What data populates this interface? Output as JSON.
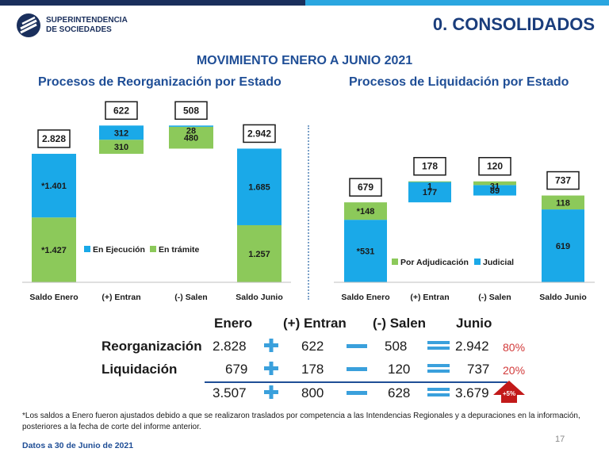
{
  "header": {
    "logo_line1": "SUPERINTENDENCIA",
    "logo_line2": "DE SOCIEDADES",
    "section_title": "0. CONSOLIDADOS",
    "main_title": "MOVIMIENTO ENERO A JUNIO 2021"
  },
  "colors": {
    "ejecucion": "#1aa9e8",
    "tramite": "#8cc95a",
    "dark_blue": "#1a2f5c",
    "title_blue": "#1f4e96"
  },
  "chart_data": [
    {
      "type": "bar",
      "title": "Procesos de Reorganización por Estado",
      "categories": [
        "Saldo Enero",
        "(+) Entran",
        "(-) Salen",
        "Saldo Junio"
      ],
      "totals": [
        "2.828",
        "622",
        "508",
        "2.942"
      ],
      "legend": [
        "En Ejecución",
        "En trámite"
      ],
      "series": [
        {
          "name": "En Ejecución",
          "values": [
            1401,
            312,
            28,
            1685
          ],
          "labels": [
            "*1.401",
            "312",
            "28",
            "1.685"
          ]
        },
        {
          "name": "En trámite",
          "values": [
            1427,
            310,
            480,
            1257
          ],
          "labels": [
            "*1.427",
            "310",
            "480",
            "1.257"
          ]
        }
      ]
    },
    {
      "type": "bar",
      "title": "Procesos de Liquidación por Estado",
      "categories": [
        "Saldo Enero",
        "(+) Entran",
        "(-) Salen",
        "Saldo Junio"
      ],
      "totals": [
        "679",
        "178",
        "120",
        "737"
      ],
      "legend": [
        "Por Adjudicación",
        "Judicial"
      ],
      "series": [
        {
          "name": "Judicial",
          "values": [
            531,
            177,
            89,
            619
          ],
          "labels": [
            "*531",
            "177",
            "89",
            "619"
          ]
        },
        {
          "name": "Por Adjudicación",
          "values": [
            148,
            1,
            31,
            118
          ],
          "labels": [
            "*148",
            "1",
            "31",
            "118"
          ]
        }
      ]
    }
  ],
  "summary_table": {
    "headers": [
      "Enero",
      "(+) Entran",
      "(-) Salen",
      "Junio"
    ],
    "rows": [
      {
        "label": "Reorganización",
        "enero": "2.828",
        "entran": "622",
        "salen": "508",
        "junio": "2.942",
        "pct": "80%"
      },
      {
        "label": "Liquidación",
        "enero": "679",
        "entran": "178",
        "salen": "120",
        "junio": "737",
        "pct": "20%"
      }
    ],
    "total": {
      "enero": "3.507",
      "entran": "800",
      "salen": "628",
      "junio": "3.679",
      "change": "+5%"
    }
  },
  "footnote": "*Los saldos a Enero fueron ajustados debido a que se realizaron traslados por competencia a las Intendencias Regionales y a depuraciones en la información, posteriores a la fecha de corte del informe anterior.",
  "date_note": "Datos a 30 de Junio de 2021",
  "page_number": "17"
}
